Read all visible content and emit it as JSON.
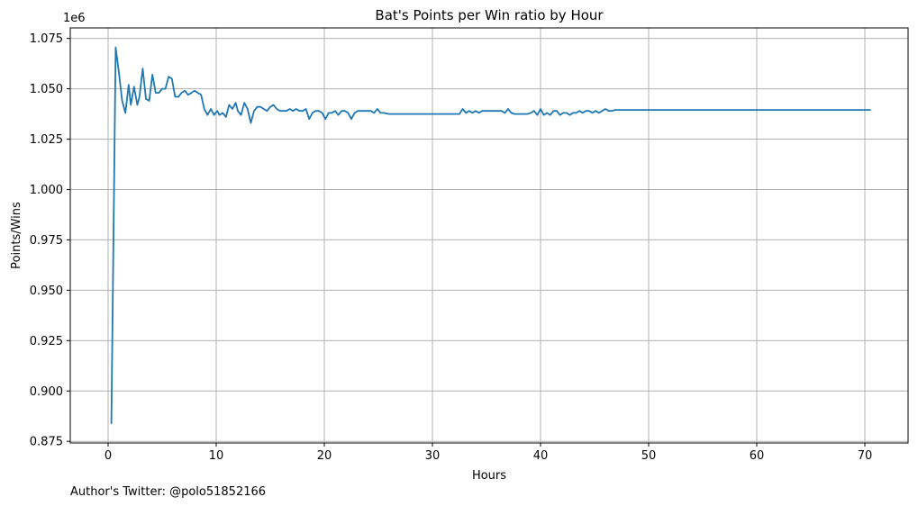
{
  "chart_data": {
    "type": "line",
    "title": "Bat's Points per Win ratio by Hour",
    "xlabel": "Hours",
    "ylabel": "Points/Wins",
    "y_offset_label": "1e6",
    "y_scale": 1000000,
    "footnote": "Author's Twitter: @polo51852166",
    "xlim": [
      -3.5,
      74
    ],
    "ylim": [
      0.8742,
      1.0802
    ],
    "x_ticks": [
      0,
      10,
      20,
      30,
      40,
      50,
      60,
      70
    ],
    "x_tick_labels": [
      "0",
      "10",
      "20",
      "30",
      "40",
      "50",
      "60",
      "70"
    ],
    "y_ticks": [
      0.875,
      0.9,
      0.925,
      0.95,
      0.975,
      1.0,
      1.025,
      1.05,
      1.075
    ],
    "y_tick_labels": [
      "0.875",
      "0.900",
      "0.925",
      "0.950",
      "0.975",
      "1.000",
      "1.025",
      "1.050",
      "1.075"
    ],
    "grid": true,
    "series": [
      {
        "color": "#1f77b4",
        "x": [
          0.3,
          0.7,
          1.0,
          1.3,
          1.6,
          1.9,
          2.1,
          2.4,
          2.7,
          2.9,
          3.2,
          3.5,
          3.8,
          4.1,
          4.4,
          4.7,
          5.0,
          5.3,
          5.6,
          5.9,
          6.2,
          6.5,
          6.8,
          7.1,
          7.4,
          7.7,
          8.0,
          8.3,
          8.6,
          8.9,
          9.2,
          9.5,
          9.8,
          10.1,
          10.3,
          10.6,
          10.9,
          11.2,
          11.5,
          11.8,
          12.0,
          12.3,
          12.6,
          12.9,
          13.2,
          13.5,
          13.8,
          14.1,
          14.4,
          14.7,
          15.0,
          15.3,
          15.6,
          15.9,
          16.2,
          16.5,
          16.8,
          17.1,
          17.4,
          17.7,
          18.0,
          18.3,
          18.6,
          18.9,
          19.2,
          19.5,
          19.8,
          20.1,
          20.4,
          20.7,
          21.0,
          21.3,
          21.6,
          21.9,
          22.2,
          22.5,
          22.8,
          23.1,
          23.4,
          23.7,
          24.0,
          24.3,
          24.6,
          24.9,
          25.2,
          25.5,
          26.0,
          28.0,
          30.0,
          32.5,
          32.8,
          33.1,
          33.4,
          33.7,
          34.0,
          34.3,
          34.6,
          34.9,
          35.2,
          35.5,
          35.8,
          36.1,
          36.4,
          36.7,
          37.0,
          37.3,
          37.6,
          37.9,
          38.2,
          38.5,
          38.8,
          39.1,
          39.4,
          39.7,
          40.0,
          40.3,
          40.6,
          40.9,
          41.2,
          41.5,
          41.8,
          42.1,
          42.4,
          42.7,
          43.0,
          43.3,
          43.6,
          43.9,
          44.2,
          44.5,
          44.8,
          45.1,
          45.4,
          45.7,
          46.0,
          46.3,
          46.6,
          46.9,
          47.2,
          48.0,
          50.0,
          60.0,
          70.5
        ],
        "y": [
          0.884,
          1.0705,
          1.058,
          1.044,
          1.038,
          1.052,
          1.042,
          1.051,
          1.042,
          1.046,
          1.06,
          1.045,
          1.044,
          1.057,
          1.048,
          1.048,
          1.05,
          1.05,
          1.056,
          1.055,
          1.046,
          1.046,
          1.048,
          1.049,
          1.047,
          1.048,
          1.049,
          1.048,
          1.047,
          1.04,
          1.037,
          1.04,
          1.037,
          1.039,
          1.037,
          1.038,
          1.036,
          1.042,
          1.04,
          1.043,
          1.039,
          1.037,
          1.043,
          1.04,
          1.033,
          1.039,
          1.041,
          1.041,
          1.04,
          1.039,
          1.041,
          1.042,
          1.04,
          1.039,
          1.039,
          1.039,
          1.04,
          1.039,
          1.04,
          1.039,
          1.039,
          1.04,
          1.035,
          1.038,
          1.039,
          1.039,
          1.038,
          1.035,
          1.038,
          1.038,
          1.039,
          1.037,
          1.039,
          1.039,
          1.038,
          1.035,
          1.038,
          1.039,
          1.039,
          1.039,
          1.039,
          1.039,
          1.038,
          1.04,
          1.038,
          1.038,
          1.0375,
          1.0375,
          1.0375,
          1.0375,
          1.04,
          1.038,
          1.039,
          1.038,
          1.039,
          1.038,
          1.039,
          1.039,
          1.039,
          1.039,
          1.039,
          1.039,
          1.039,
          1.038,
          1.04,
          1.038,
          1.0375,
          1.0375,
          1.0375,
          1.0375,
          1.0375,
          1.038,
          1.039,
          1.037,
          1.04,
          1.037,
          1.038,
          1.037,
          1.039,
          1.039,
          1.037,
          1.038,
          1.038,
          1.037,
          1.038,
          1.038,
          1.039,
          1.038,
          1.039,
          1.039,
          1.038,
          1.039,
          1.038,
          1.039,
          1.04,
          1.039,
          1.039,
          1.0395,
          1.0395,
          1.0395,
          1.0395,
          1.0395,
          1.0395
        ]
      }
    ]
  }
}
